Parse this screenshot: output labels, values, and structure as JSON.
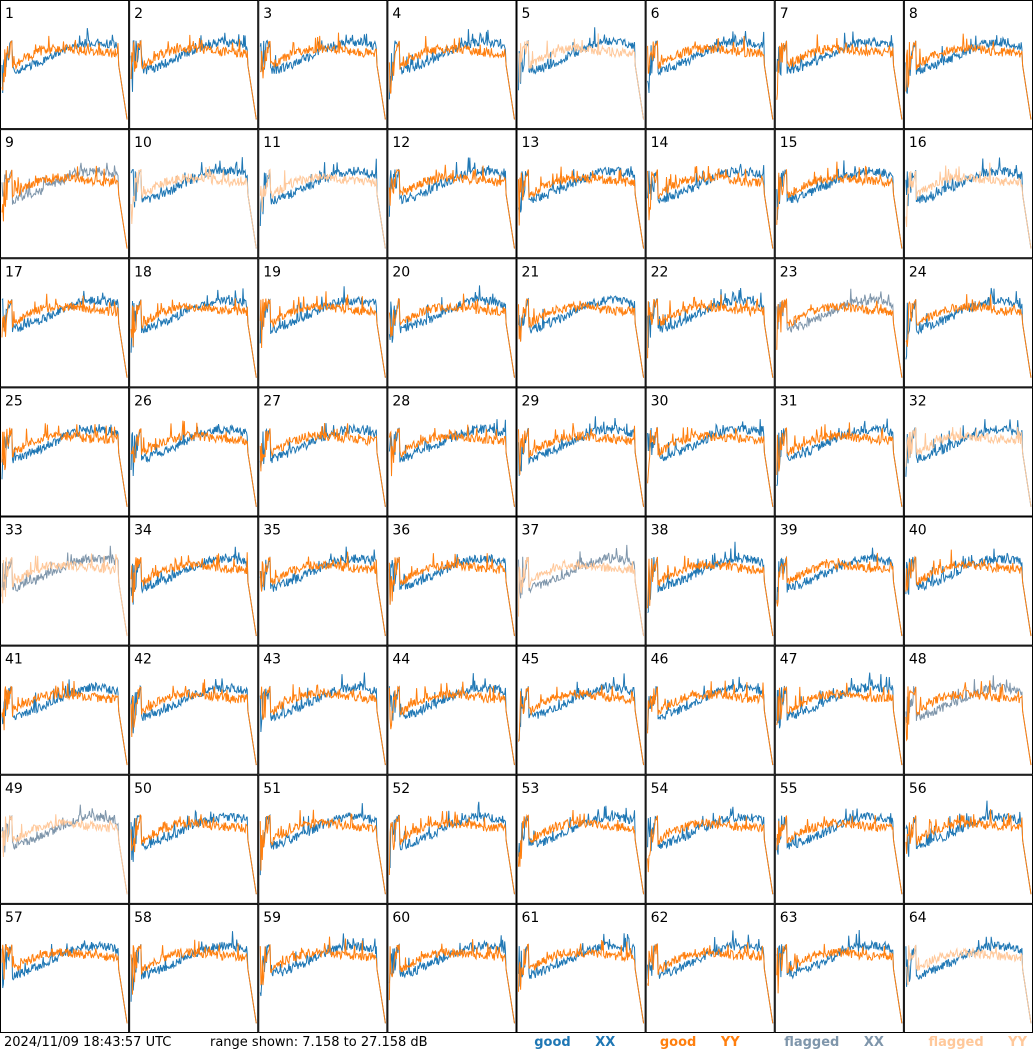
{
  "chart_data": {
    "type": "line",
    "layout": "8x8 small multiples",
    "tile_labels": [
      "1",
      "2",
      "3",
      "4",
      "5",
      "6",
      "7",
      "8",
      "9",
      "10",
      "11",
      "12",
      "13",
      "14",
      "15",
      "16",
      "17",
      "18",
      "19",
      "20",
      "21",
      "22",
      "23",
      "24",
      "25",
      "26",
      "27",
      "28",
      "29",
      "30",
      "31",
      "32",
      "33",
      "34",
      "35",
      "36",
      "37",
      "38",
      "39",
      "40",
      "41",
      "42",
      "43",
      "44",
      "45",
      "46",
      "47",
      "48",
      "49",
      "50",
      "51",
      "52",
      "53",
      "54",
      "55",
      "56",
      "57",
      "58",
      "59",
      "60",
      "61",
      "62",
      "63",
      "64"
    ],
    "ylim": [
      7.158,
      27.158
    ],
    "yunit": "dB",
    "series_styles": {
      "good_xx": "#1f77b4",
      "good_yy": "#ff7f0e",
      "flagged_xx": "#7f96ab",
      "flagged_yy": "#ffc89a"
    },
    "tiles_flags": {
      "xx_flagged": [
        9,
        23,
        48,
        49,
        33,
        37
      ],
      "yy_flagged": [
        5,
        10,
        11,
        16,
        32,
        33,
        37,
        49,
        64
      ]
    }
  },
  "footer": {
    "timestamp": "2024/11/09 18:43:57 UTC",
    "range": "range shown: 7.158 to 27.158 dB"
  },
  "legend": {
    "good": "good",
    "flagged": "flagged",
    "xx": "XX",
    "yy": "YY"
  }
}
